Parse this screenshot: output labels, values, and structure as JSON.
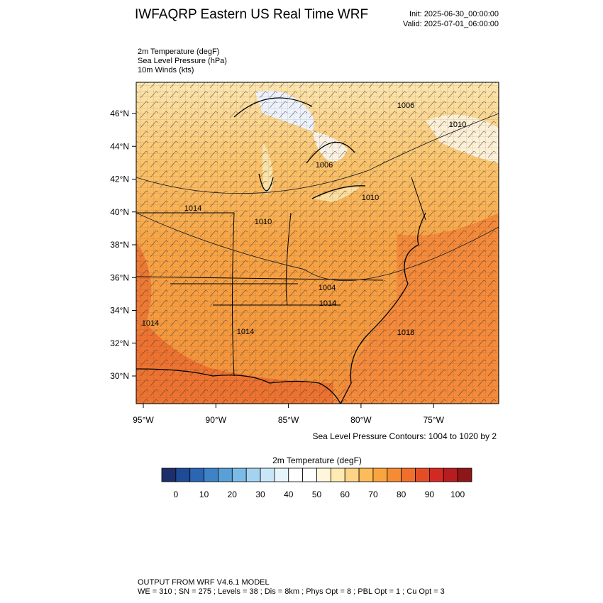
{
  "header": {
    "title": "IWFAQRP Eastern US Real Time WRF",
    "init": "Init: 2025-06-30_00:00:00",
    "valid": "Valid: 2025-07-01_06:00:00",
    "fields": [
      "2m Temperature   (degF)",
      "Sea Level Pressure   (hPa)",
      "10m Winds   (kts)"
    ]
  },
  "map": {
    "lat_labels": [
      "46°N",
      "44°N",
      "42°N",
      "40°N",
      "38°N",
      "36°N",
      "34°N",
      "32°N",
      "30°N"
    ],
    "lon_labels": [
      "95°W",
      "90°W",
      "85°W",
      "80°W",
      "75°W"
    ],
    "contour_labels": [
      "1006",
      "1010",
      "1006",
      "1010",
      "1014",
      "1010",
      "1004",
      "1014",
      "1014",
      "1014",
      "1018"
    ],
    "contour_note": "Sea Level Pressure Contours: 1004 to 1020 by 2"
  },
  "colorbar": {
    "title": "2m Temperature  (degF)",
    "ticks": [
      0,
      10,
      20,
      30,
      40,
      50,
      60,
      70,
      80,
      90,
      100
    ],
    "colors": [
      "#1c2f6b",
      "#1f4b96",
      "#2b66b5",
      "#3f82c6",
      "#5aa0d8",
      "#7cbbe6",
      "#a3d3f0",
      "#c8e6f7",
      "#e6f4fb",
      "#ffffff",
      "#ffffff",
      "#fff6dc",
      "#feeab0",
      "#fdd386",
      "#fdbb5a",
      "#f9a43e",
      "#f58b33",
      "#ef6f2b",
      "#e44e27",
      "#d22a22",
      "#b71c1f",
      "#8e1618"
    ]
  },
  "footer": {
    "line1": "OUTPUT FROM WRF V4.6.1 MODEL",
    "line2": "WE = 310 ; SN = 275 ; Levels = 38 ; Dis = 8km ; Phys Opt = 8 ; PBL Opt = 1 ; Cu Opt = 3"
  }
}
